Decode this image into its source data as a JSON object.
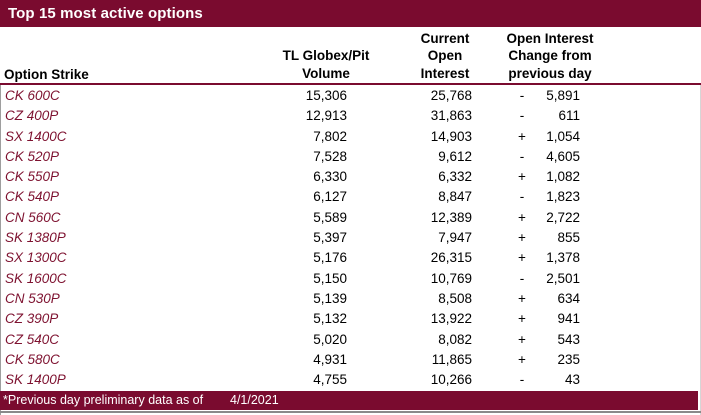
{
  "title_bar": {
    "title": "Top 15 most active options"
  },
  "header": {
    "option_strike": "Option Strike",
    "volume_lines": [
      "TL Globex/Pit",
      "Volume"
    ],
    "open_interest_lines": [
      "Current",
      "Open",
      "Interest"
    ],
    "change_lines": [
      "Open Interest",
      "Change from",
      "previous day"
    ]
  },
  "table": {
    "rows": [
      {
        "strike": "CK 600C",
        "volume": "15,306",
        "open_interest": "25,768",
        "sign": "-",
        "value": "5,891"
      },
      {
        "strike": "CZ 400P",
        "volume": "12,913",
        "open_interest": "31,863",
        "sign": "-",
        "value": "611"
      },
      {
        "strike": "SX 1400C",
        "volume": "7,802",
        "open_interest": "14,903",
        "sign": "+",
        "value": "1,054"
      },
      {
        "strike": "CK 520P",
        "volume": "7,528",
        "open_interest": "9,612",
        "sign": "-",
        "value": "4,605"
      },
      {
        "strike": "CK 550P",
        "volume": "6,330",
        "open_interest": "6,332",
        "sign": "+",
        "value": "1,082"
      },
      {
        "strike": "CK 540P",
        "volume": "6,127",
        "open_interest": "8,847",
        "sign": "-",
        "value": "1,823"
      },
      {
        "strike": "CN 560C",
        "volume": "5,589",
        "open_interest": "12,389",
        "sign": "+",
        "value": "2,722"
      },
      {
        "strike": "SK 1380P",
        "volume": "5,397",
        "open_interest": "7,947",
        "sign": "+",
        "value": "855"
      },
      {
        "strike": "SX 1300C",
        "volume": "5,176",
        "open_interest": "26,315",
        "sign": "+",
        "value": "1,378"
      },
      {
        "strike": "SK 1600C",
        "volume": "5,150",
        "open_interest": "10,769",
        "sign": "-",
        "value": "2,501"
      },
      {
        "strike": "CN 530P",
        "volume": "5,139",
        "open_interest": "8,508",
        "sign": "+",
        "value": "634"
      },
      {
        "strike": "CZ 390P",
        "volume": "5,132",
        "open_interest": "13,922",
        "sign": "+",
        "value": "941"
      },
      {
        "strike": "CZ 540C",
        "volume": "5,020",
        "open_interest": "8,082",
        "sign": "+",
        "value": "543"
      },
      {
        "strike": "CK 580C",
        "volume": "4,931",
        "open_interest": "11,865",
        "sign": "+",
        "value": "235"
      },
      {
        "strike": "SK 1400P",
        "volume": "4,755",
        "open_interest": "10,266",
        "sign": "-",
        "value": "43"
      }
    ]
  },
  "footer": {
    "note": "*Previous day preliminary data as of",
    "date": "4/1/2021"
  },
  "colors": {
    "maroon": "#7A0B2F",
    "strike_text": "#7E1230",
    "body_text": "#000000",
    "bar_text": "#FFFFFF"
  },
  "chart_data": {
    "type": "table",
    "title": "Top 15 most active options",
    "columns": [
      "Option Strike",
      "TL Globex/Pit Volume",
      "Current Open Interest",
      "Open Interest Change from previous day"
    ],
    "rows": [
      [
        "CK 600C",
        15306,
        25768,
        -5891
      ],
      [
        "CZ 400P",
        12913,
        31863,
        -611
      ],
      [
        "SX 1400C",
        7802,
        14903,
        1054
      ],
      [
        "CK 520P",
        7528,
        9612,
        -4605
      ],
      [
        "CK 550P",
        6330,
        6332,
        1082
      ],
      [
        "CK 540P",
        6127,
        8847,
        -1823
      ],
      [
        "CN 560C",
        5589,
        12389,
        2722
      ],
      [
        "SK 1380P",
        5397,
        7947,
        855
      ],
      [
        "SX 1300C",
        5176,
        26315,
        1378
      ],
      [
        "SK 1600C",
        5150,
        10769,
        -2501
      ],
      [
        "CN 530P",
        5139,
        8508,
        634
      ],
      [
        "CZ 390P",
        5132,
        13922,
        941
      ],
      [
        "CZ 540C",
        5020,
        8082,
        543
      ],
      [
        "CK 580C",
        4931,
        11865,
        235
      ],
      [
        "SK 1400P",
        4755,
        10266,
        -43
      ]
    ],
    "footnote": "*Previous day preliminary data as of 4/1/2021"
  }
}
